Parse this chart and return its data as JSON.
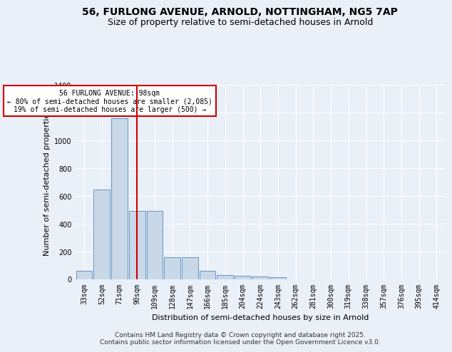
{
  "title": "56, FURLONG AVENUE, ARNOLD, NOTTINGHAM, NG5 7AP",
  "subtitle": "Size of property relative to semi-detached houses in Arnold",
  "xlabel": "Distribution of semi-detached houses by size in Arnold",
  "ylabel": "Number of semi-detached properties",
  "footer_line1": "Contains HM Land Registry data © Crown copyright and database right 2025.",
  "footer_line2": "Contains public sector information licensed under the Open Government Licence v3.0.",
  "bin_labels": [
    "33sqm",
    "52sqm",
    "71sqm",
    "90sqm",
    "109sqm",
    "128sqm",
    "147sqm",
    "166sqm",
    "185sqm",
    "204sqm",
    "224sqm",
    "243sqm",
    "262sqm",
    "281sqm",
    "300sqm",
    "319sqm",
    "338sqm",
    "357sqm",
    "376sqm",
    "395sqm",
    "414sqm"
  ],
  "bar_values": [
    60,
    645,
    1160,
    490,
    490,
    155,
    155,
    60,
    30,
    25,
    20,
    15,
    0,
    0,
    0,
    0,
    0,
    0,
    0,
    0,
    0
  ],
  "bar_color": "#c8d8e8",
  "bar_edge_color": "#5588bb",
  "property_bin_index": 3,
  "annotation_title": "56 FURLONG AVENUE: 98sqm",
  "annotation_line2": "← 80% of semi-detached houses are smaller (2,085)",
  "annotation_line3": "19% of semi-detached houses are larger (500) →",
  "vline_color": "#cc0000",
  "annotation_box_edgecolor": "#cc0000",
  "ylim": [
    0,
    1400
  ],
  "yticks": [
    0,
    200,
    400,
    600,
    800,
    1000,
    1200,
    1400
  ],
  "background_color": "#eaf0f8",
  "plot_background_color": "#eaf0f8",
  "grid_color": "#ffffff",
  "title_fontsize": 10,
  "subtitle_fontsize": 9,
  "axis_label_fontsize": 8,
  "tick_fontsize": 7,
  "footer_fontsize": 6.5
}
